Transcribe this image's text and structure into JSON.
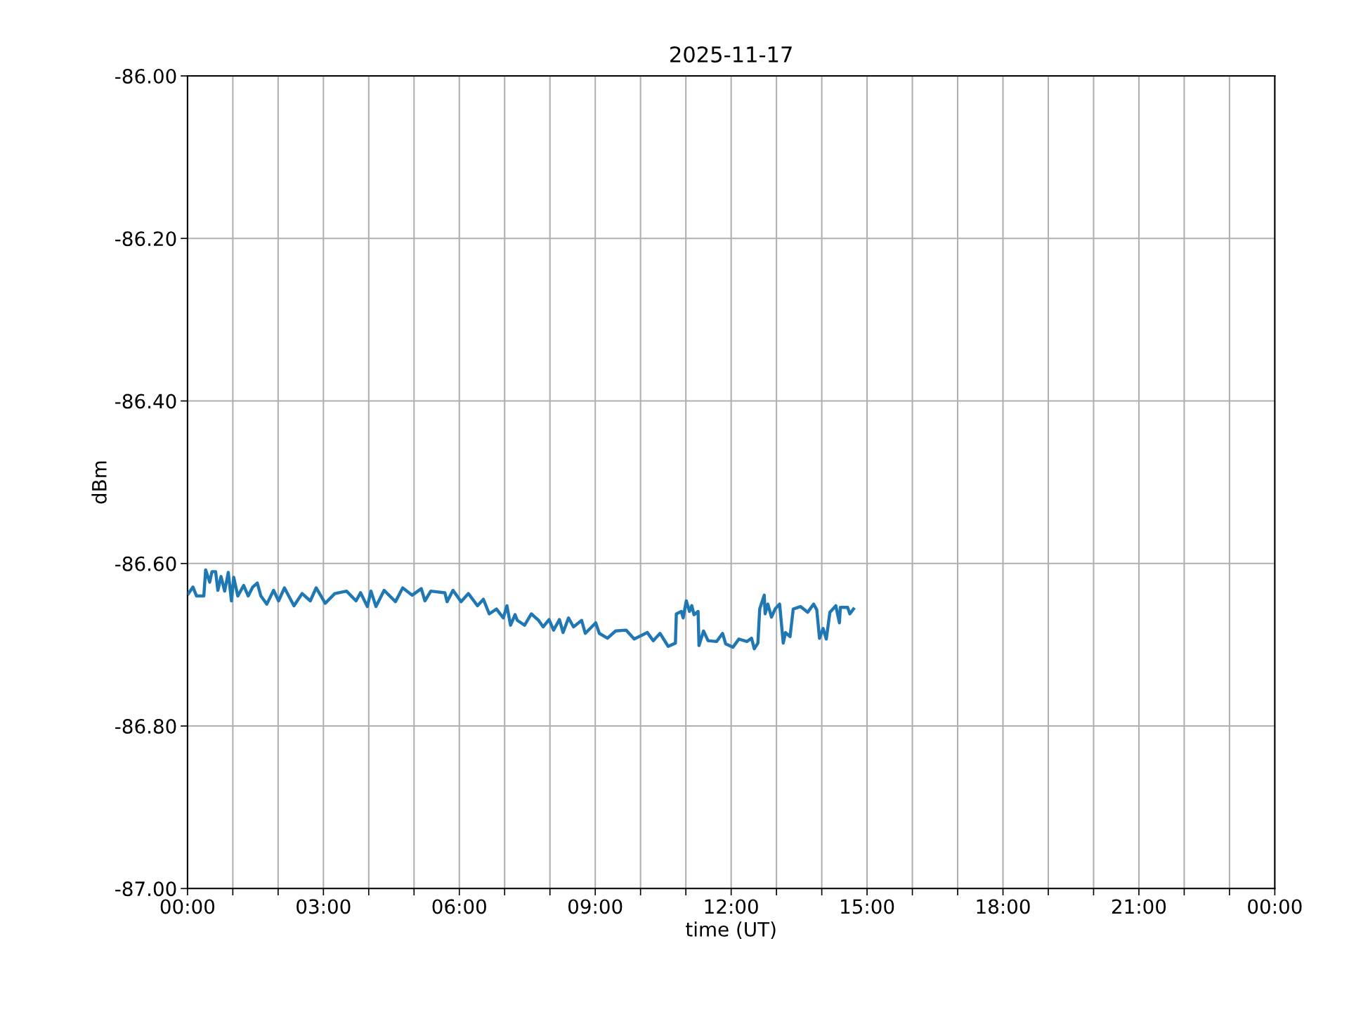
{
  "chart_data": {
    "type": "line",
    "title": "2025-11-17",
    "xlabel": "time (UT)",
    "ylabel": "dBm",
    "series": [
      {
        "color": "#1f77b4",
        "x": [
          0.02,
          0.12,
          0.2,
          0.36,
          0.4,
          0.49,
          0.54,
          0.62,
          0.67,
          0.74,
          0.82,
          0.9,
          0.97,
          1.02,
          1.11,
          1.24,
          1.34,
          1.44,
          1.54,
          1.62,
          1.75,
          1.9,
          2.01,
          2.14,
          2.35,
          2.53,
          2.71,
          2.84,
          3.04,
          3.25,
          3.51,
          3.72,
          3.82,
          3.97,
          4.05,
          4.16,
          4.34,
          4.59,
          4.75,
          4.96,
          5.16,
          5.24,
          5.37,
          5.68,
          5.73,
          5.86,
          6.04,
          6.2,
          6.4,
          6.53,
          6.66,
          6.82,
          6.97,
          7.05,
          7.13,
          7.23,
          7.28,
          7.44,
          7.59,
          7.75,
          7.85,
          7.98,
          8.08,
          8.21,
          8.29,
          8.41,
          8.52,
          8.7,
          8.78,
          9.01,
          9.09,
          9.27,
          9.45,
          9.68,
          9.86,
          10.15,
          10.28,
          10.43,
          10.61,
          10.77,
          10.79,
          10.9,
          10.94,
          11.01,
          11.08,
          11.13,
          11.18,
          11.27,
          11.29,
          11.39,
          11.49,
          11.68,
          11.81,
          11.88,
          12.04,
          12.17,
          12.35,
          12.45,
          12.51,
          12.59,
          12.63,
          12.73,
          12.75,
          12.81,
          12.89,
          12.97,
          13.07,
          13.15,
          13.2,
          13.3,
          13.37,
          13.53,
          13.69,
          13.82,
          13.89,
          13.95,
          14.03,
          14.1,
          14.18,
          14.31,
          14.39,
          14.41,
          14.57,
          14.62,
          14.7
        ],
        "values": [
          -86.637,
          -86.629,
          -86.64,
          -86.64,
          -86.608,
          -86.623,
          -86.61,
          -86.61,
          -86.633,
          -86.616,
          -86.634,
          -86.611,
          -86.646,
          -86.617,
          -86.64,
          -86.627,
          -86.64,
          -86.629,
          -86.624,
          -86.64,
          -86.65,
          -86.633,
          -86.646,
          -86.63,
          -86.652,
          -86.637,
          -86.646,
          -86.63,
          -86.649,
          -86.637,
          -86.634,
          -86.646,
          -86.636,
          -86.653,
          -86.634,
          -86.653,
          -86.633,
          -86.647,
          -86.63,
          -86.639,
          -86.631,
          -86.646,
          -86.634,
          -86.636,
          -86.647,
          -86.633,
          -86.647,
          -86.637,
          -86.652,
          -86.644,
          -86.662,
          -86.656,
          -86.667,
          -86.652,
          -86.676,
          -86.663,
          -86.67,
          -86.676,
          -86.662,
          -86.67,
          -86.678,
          -86.669,
          -86.682,
          -86.669,
          -86.685,
          -86.667,
          -86.678,
          -86.67,
          -86.686,
          -86.673,
          -86.686,
          -86.692,
          -86.683,
          -86.682,
          -86.693,
          -86.685,
          -86.695,
          -86.686,
          -86.702,
          -86.698,
          -86.662,
          -86.659,
          -86.667,
          -86.646,
          -86.659,
          -86.652,
          -86.663,
          -86.659,
          -86.701,
          -86.683,
          -86.695,
          -86.696,
          -86.686,
          -86.699,
          -86.703,
          -86.693,
          -86.696,
          -86.692,
          -86.705,
          -86.698,
          -86.656,
          -86.639,
          -86.662,
          -86.65,
          -86.666,
          -86.656,
          -86.65,
          -86.698,
          -86.685,
          -86.69,
          -86.656,
          -86.653,
          -86.66,
          -86.65,
          -86.657,
          -86.692,
          -86.68,
          -86.693,
          -86.66,
          -86.652,
          -86.673,
          -86.654,
          -86.654,
          -86.662,
          -86.656
        ]
      }
    ],
    "xlim": [
      0,
      24
    ],
    "xticks": [
      {
        "value": 0,
        "label": "00:00"
      },
      {
        "value": 1,
        "label": null
      },
      {
        "value": 2,
        "label": null
      },
      {
        "value": 3,
        "label": "03:00"
      },
      {
        "value": 4,
        "label": null
      },
      {
        "value": 5,
        "label": null
      },
      {
        "value": 6,
        "label": "06:00"
      },
      {
        "value": 7,
        "label": null
      },
      {
        "value": 8,
        "label": null
      },
      {
        "value": 9,
        "label": "09:00"
      },
      {
        "value": 10,
        "label": null
      },
      {
        "value": 11,
        "label": null
      },
      {
        "value": 12,
        "label": "12:00"
      },
      {
        "value": 13,
        "label": null
      },
      {
        "value": 14,
        "label": null
      },
      {
        "value": 15,
        "label": "15:00"
      },
      {
        "value": 16,
        "label": null
      },
      {
        "value": 17,
        "label": null
      },
      {
        "value": 18,
        "label": "18:00"
      },
      {
        "value": 19,
        "label": null
      },
      {
        "value": 20,
        "label": null
      },
      {
        "value": 21,
        "label": "21:00"
      },
      {
        "value": 22,
        "label": null
      },
      {
        "value": 23,
        "label": null
      },
      {
        "value": 24,
        "label": "00:00"
      }
    ],
    "ylim": [
      -87,
      -86
    ],
    "yticks": [
      {
        "value": -87,
        "label": "-87.00"
      },
      {
        "value": -86.8,
        "label": "-86.80"
      },
      {
        "value": -86.6,
        "label": "-86.60"
      },
      {
        "value": -86.4,
        "label": "-86.40"
      },
      {
        "value": -86.2,
        "label": "-86.20"
      },
      {
        "value": -86,
        "label": "-86.00"
      }
    ],
    "grid": true,
    "legend": false,
    "marker": "none",
    "line_style": "solid"
  }
}
